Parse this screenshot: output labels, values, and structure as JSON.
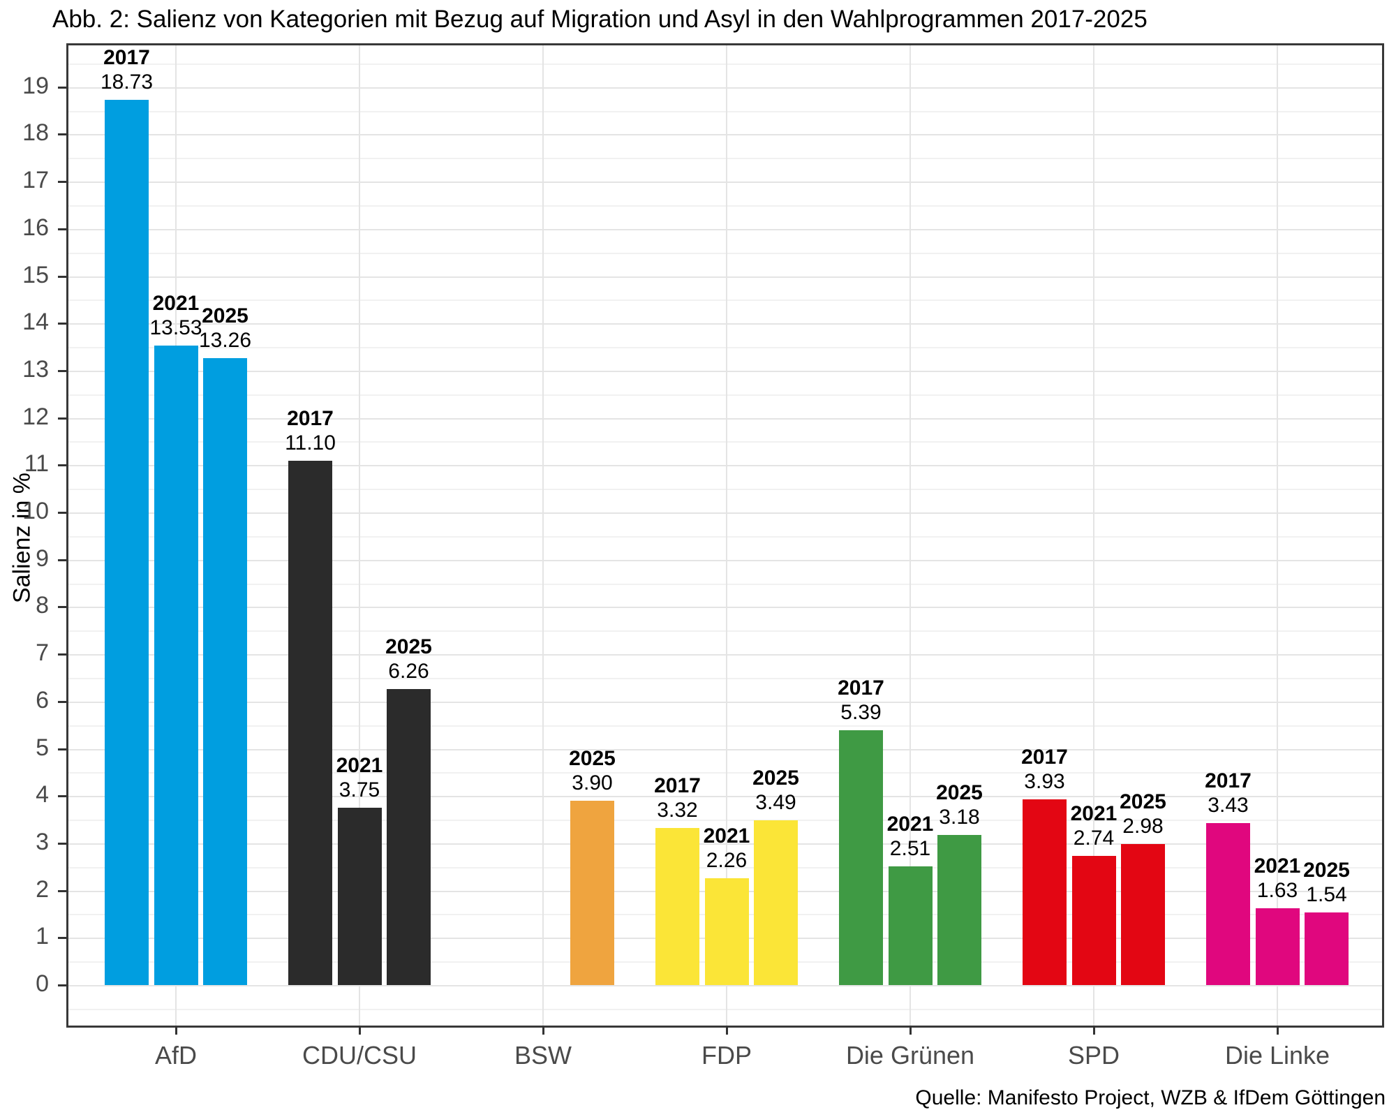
{
  "chart_data": {
    "type": "bar",
    "title": "Abb. 2: Salienz von Kategorien mit Bezug auf Migration und Asyl in den Wahlprogrammen 2017-2025",
    "ylabel": "Salienz in %",
    "xlabel": "",
    "source": "Quelle: Manifesto Project, WZB & IfDem Göttingen",
    "ylim": [
      0,
      19.7
    ],
    "yticks": [
      0,
      1,
      2,
      3,
      4,
      5,
      6,
      7,
      8,
      9,
      10,
      11,
      12,
      13,
      14,
      15,
      16,
      17,
      18,
      19
    ],
    "grid": "major-and-minor-horizontal, major-vertical",
    "legend": "none",
    "categories": [
      "AfD",
      "CDU/CSU",
      "BSW",
      "FDP",
      "Die Grünen",
      "SPD",
      "Die Linke"
    ],
    "groups": [
      {
        "party": "AfD",
        "color": "#009EE0",
        "bars": [
          {
            "year": "2017",
            "value": 18.73,
            "label": "18.73",
            "slot": 0
          },
          {
            "year": "2021",
            "value": 13.53,
            "label": "13.53",
            "slot": 1
          },
          {
            "year": "2025",
            "value": 13.26,
            "label": "13.26",
            "slot": 2
          }
        ]
      },
      {
        "party": "CDU/CSU",
        "color": "#2B2B2B",
        "bars": [
          {
            "year": "2017",
            "value": 11.1,
            "label": "11.10",
            "slot": 0
          },
          {
            "year": "2021",
            "value": 3.75,
            "label": "3.75",
            "slot": 1
          },
          {
            "year": "2025",
            "value": 6.26,
            "label": "6.26",
            "slot": 2
          }
        ]
      },
      {
        "party": "BSW",
        "color": "#EFA43F",
        "bars": [
          {
            "year": "2025",
            "value": 3.9,
            "label": "3.90",
            "slot": 2
          }
        ]
      },
      {
        "party": "FDP",
        "color": "#FBE537",
        "bars": [
          {
            "year": "2017",
            "value": 3.32,
            "label": "3.32",
            "slot": 0
          },
          {
            "year": "2021",
            "value": 2.26,
            "label": "2.26",
            "slot": 1
          },
          {
            "year": "2025",
            "value": 3.49,
            "label": "3.49",
            "slot": 2
          }
        ]
      },
      {
        "party": "Die Grünen",
        "color": "#3F9A44",
        "bars": [
          {
            "year": "2017",
            "value": 5.39,
            "label": "5.39",
            "slot": 0
          },
          {
            "year": "2021",
            "value": 2.51,
            "label": "2.51",
            "slot": 1
          },
          {
            "year": "2025",
            "value": 3.18,
            "label": "3.18",
            "slot": 2
          }
        ]
      },
      {
        "party": "SPD",
        "color": "#E30613",
        "bars": [
          {
            "year": "2017",
            "value": 3.93,
            "label": "3.93",
            "slot": 0
          },
          {
            "year": "2021",
            "value": 2.74,
            "label": "2.74",
            "slot": 1
          },
          {
            "year": "2025",
            "value": 2.98,
            "label": "2.98",
            "slot": 2
          }
        ]
      },
      {
        "party": "Die Linke",
        "color": "#E0077E",
        "bars": [
          {
            "year": "2017",
            "value": 3.43,
            "label": "3.43",
            "slot": 0
          },
          {
            "year": "2021",
            "value": 1.63,
            "label": "1.63",
            "slot": 1
          },
          {
            "year": "2025",
            "value": 1.54,
            "label": "1.54",
            "slot": 2
          }
        ]
      }
    ]
  }
}
